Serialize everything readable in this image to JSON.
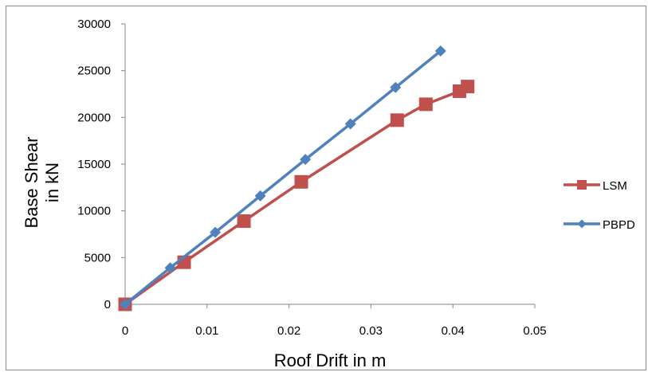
{
  "chart_data": {
    "type": "line",
    "title": "",
    "xlabel": "Roof Drift in m",
    "ylabel_lines": [
      "Base Shear",
      "in kN"
    ],
    "xlim": [
      0,
      0.05
    ],
    "ylim": [
      0,
      30000
    ],
    "x_ticks": [
      0,
      0.01,
      0.02,
      0.03,
      0.04,
      0.05
    ],
    "x_tick_labels": [
      "0",
      "0.01",
      "0.02",
      "0.03",
      "0.04",
      "0.05"
    ],
    "y_ticks": [
      0,
      5000,
      10000,
      15000,
      20000,
      25000,
      30000
    ],
    "y_tick_labels": [
      "0",
      "5000",
      "10000",
      "15000",
      "20000",
      "25000",
      "30000"
    ],
    "grid": false,
    "legend_position": "right",
    "series": [
      {
        "name": "LSM",
        "color": "#c0504d",
        "marker": "square",
        "points": [
          [
            0,
            0
          ],
          [
            0.0072,
            4500
          ],
          [
            0.0145,
            8900
          ],
          [
            0.0215,
            13100
          ],
          [
            0.0332,
            19700
          ],
          [
            0.0367,
            21400
          ],
          [
            0.0408,
            22800
          ],
          [
            0.0418,
            23300
          ]
        ]
      },
      {
        "name": "PBPD",
        "color": "#4f81bd",
        "marker": "diamond",
        "points": [
          [
            0,
            0
          ],
          [
            0.0055,
            3900
          ],
          [
            0.011,
            7700
          ],
          [
            0.0165,
            11600
          ],
          [
            0.022,
            15500
          ],
          [
            0.0275,
            19300
          ],
          [
            0.033,
            23200
          ],
          [
            0.0385,
            27100
          ]
        ]
      }
    ]
  }
}
